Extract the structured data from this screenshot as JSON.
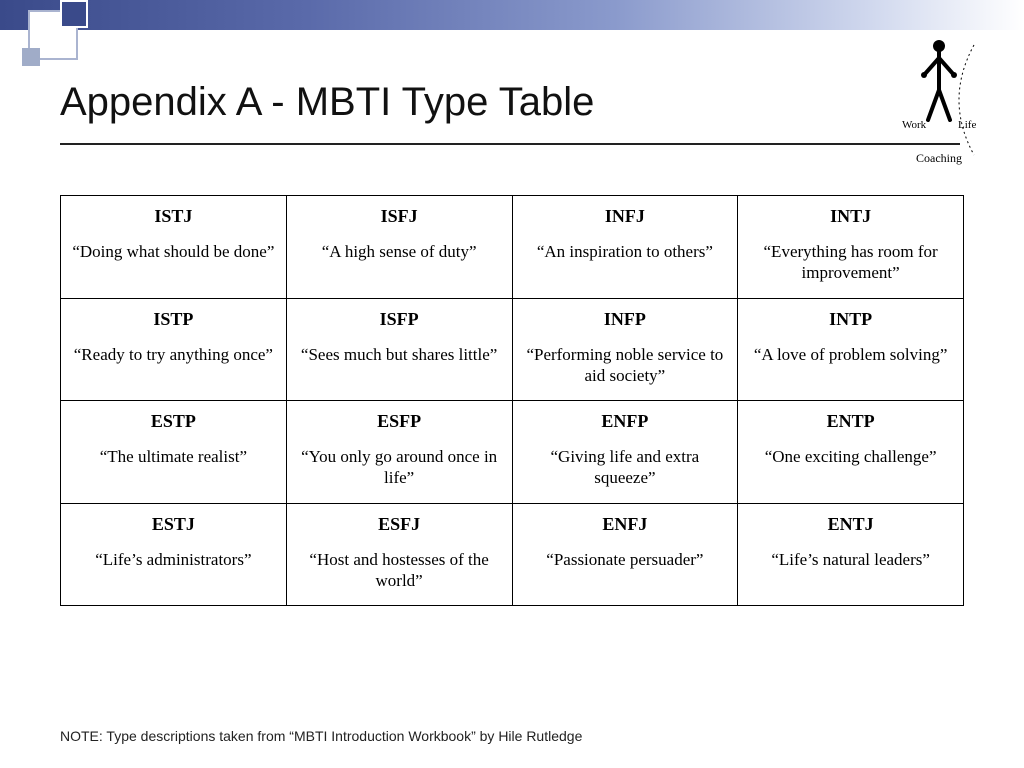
{
  "title": "Appendix A - MBTI Type Table",
  "logo": {
    "work": "Work",
    "life": "Life",
    "coaching": "Coaching"
  },
  "table": {
    "type": "table",
    "columns": 4,
    "rows": 4,
    "cells": [
      [
        {
          "code": "ISTJ",
          "desc": "“Doing what should be done”"
        },
        {
          "code": "ISFJ",
          "desc": "“A high sense of duty”"
        },
        {
          "code": "INFJ",
          "desc": "“An inspiration to others”"
        },
        {
          "code": "INTJ",
          "desc": "“Everything has room for improvement”"
        }
      ],
      [
        {
          "code": "ISTP",
          "desc": "“Ready to try anything once”"
        },
        {
          "code": "ISFP",
          "desc": "“Sees much but shares little”"
        },
        {
          "code": "INFP",
          "desc": "“Performing noble service to aid society”"
        },
        {
          "code": "INTP",
          "desc": "“A love of problem solving”"
        }
      ],
      [
        {
          "code": "ESTP",
          "desc": "“The ultimate realist”"
        },
        {
          "code": "ESFP",
          "desc": "“You only go around once in life”"
        },
        {
          "code": "ENFP",
          "desc": "“Giving life and extra squeeze”"
        },
        {
          "code": "ENTP",
          "desc": "“One exciting challenge”"
        }
      ],
      [
        {
          "code": "ESTJ",
          "desc": "“Life’s administrators”"
        },
        {
          "code": "ESFJ",
          "desc": "“Host and hostesses of the world”"
        },
        {
          "code": "ENFJ",
          "desc": "“Passionate persuader”"
        },
        {
          "code": "ENTJ",
          "desc": "“Life’s natural leaders”"
        }
      ]
    ],
    "border_color": "#000000",
    "code_fontsize": 18,
    "desc_fontsize": 17,
    "font_family": "Times New Roman"
  },
  "footnote": "NOTE: Type descriptions taken from “MBTI Introduction Workbook” by Hile Rutledge",
  "colors": {
    "band_gradient_start": "#3a4a8a",
    "band_gradient_end": "#ffffff",
    "title_color": "#111111",
    "rule_color": "#222222",
    "background": "#ffffff"
  }
}
